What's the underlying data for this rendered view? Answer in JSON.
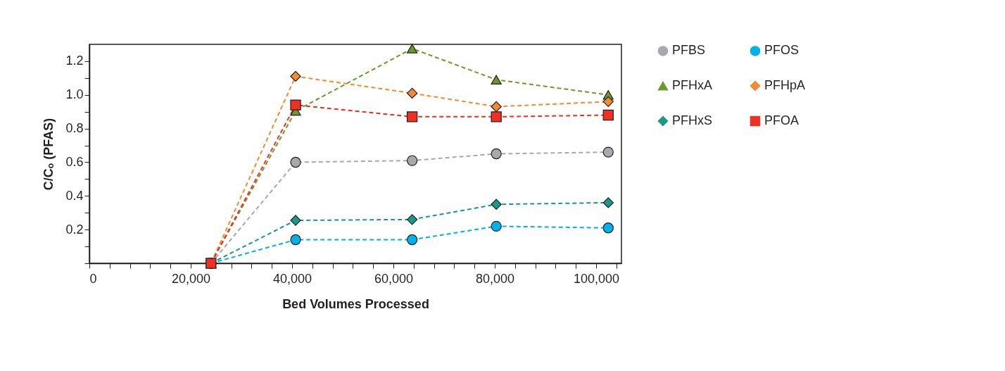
{
  "chart_data": {
    "type": "line",
    "xlabel": "Bed Volumes Processed",
    "ylabel": "C/Cₒ (PFAS)",
    "x": [
      24000,
      40700,
      63700,
      80300,
      102400
    ],
    "series": [
      {
        "name": "PFBS",
        "color": "#a7a9ac",
        "marker": "circle",
        "values": [
          0,
          0.6,
          0.61,
          0.65,
          0.66
        ]
      },
      {
        "name": "PFHxA",
        "color": "#6a9a2a",
        "marker": "triangle",
        "values": [
          0,
          0.905,
          1.275,
          1.09,
          1.0
        ]
      },
      {
        "name": "PFHxS",
        "color": "#1a9a86",
        "marker": "diamond",
        "values": [
          0,
          0.255,
          0.26,
          0.35,
          0.36
        ]
      },
      {
        "name": "PFOS",
        "color": "#00b2e8",
        "marker": "circle",
        "values": [
          0,
          0.14,
          0.14,
          0.22,
          0.21
        ]
      },
      {
        "name": "PFHpA",
        "color": "#f58a34",
        "marker": "diamond",
        "values": [
          0,
          1.11,
          1.01,
          0.93,
          0.96
        ]
      },
      {
        "name": "PFOA",
        "color": "#ee3124",
        "marker": "square",
        "values": [
          0,
          0.94,
          0.87,
          0.87,
          0.88
        ]
      }
    ],
    "xlim": [
      0,
      105000
    ],
    "xticks": [
      0,
      {
        "value": 4000,
        "label": null
      },
      {
        "value": 8000,
        "label": null
      },
      {
        "value": 12000,
        "label": null
      },
      {
        "value": 16000,
        "label": null
      },
      {
        "value": 20000,
        "label": "20,000"
      },
      {
        "value": 24000,
        "label": null
      },
      {
        "value": 28000,
        "label": null
      },
      {
        "value": 32000,
        "label": null
      },
      {
        "value": 36000,
        "label": null
      },
      {
        "value": 40000,
        "label": "40,000"
      },
      {
        "value": 44000,
        "label": null
      },
      {
        "value": 48000,
        "label": null
      },
      {
        "value": 52000,
        "label": null
      },
      {
        "value": 56000,
        "label": null
      },
      {
        "value": 60000,
        "label": "60,000"
      },
      {
        "value": 64000,
        "label": null
      },
      {
        "value": 68000,
        "label": null
      },
      {
        "value": 72000,
        "label": null
      },
      {
        "value": 76000,
        "label": null
      },
      {
        "value": 80000,
        "label": "80,000"
      },
      {
        "value": 84000,
        "label": null
      },
      {
        "value": 88000,
        "label": null
      },
      {
        "value": 92000,
        "label": null
      },
      {
        "value": 96000,
        "label": null
      },
      {
        "value": 100000,
        "label": "100,000"
      },
      {
        "value": 104000,
        "label": null
      }
    ],
    "ylim": [
      0,
      1.3
    ],
    "yticks": [
      {
        "value": 0,
        "label": null
      },
      {
        "value": 0.1,
        "label": null
      },
      0.2,
      {
        "value": 0.3,
        "label": null
      },
      0.4,
      {
        "value": 0.5,
        "label": null
      },
      0.6,
      {
        "value": 0.7,
        "label": null
      },
      0.8,
      {
        "value": 0.9,
        "label": null
      },
      {
        "value": 1.0,
        "label": "1.0"
      },
      {
        "value": 1.1,
        "label": null
      },
      1.2
    ],
    "grid": false,
    "legend": "right",
    "line_style": "dashed"
  }
}
